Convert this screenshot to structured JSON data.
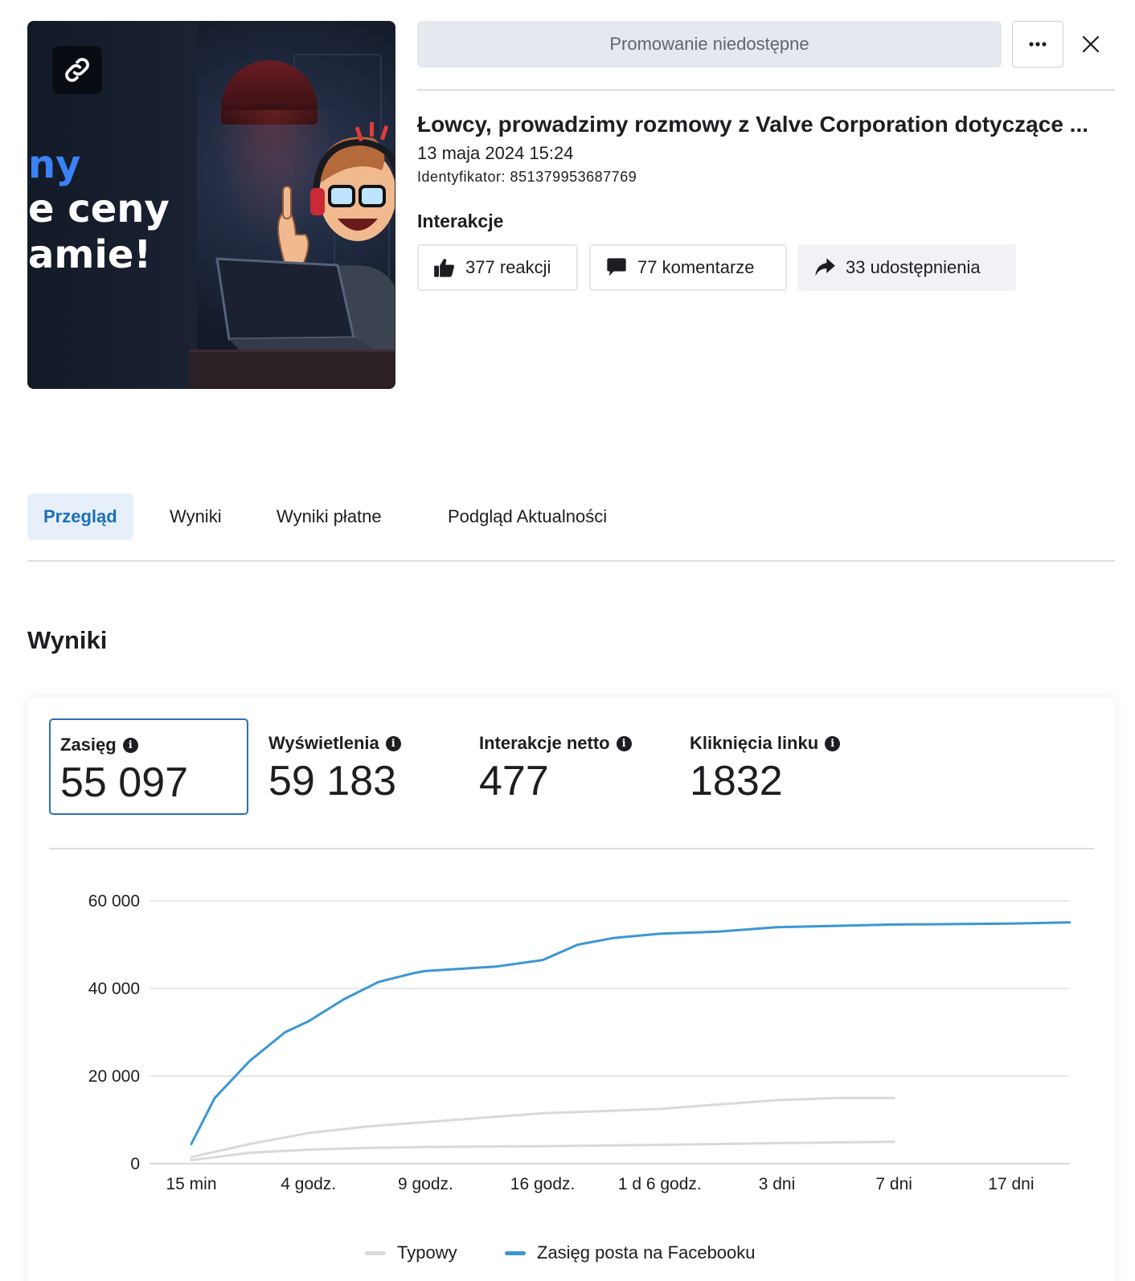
{
  "thumbnail": {
    "text_lines": [
      "ny",
      "e ceny",
      "amie!"
    ],
    "link_icon": "link-icon"
  },
  "header": {
    "promo_button": "Promowanie niedostępne",
    "more_icon": "more-dots-icon",
    "close_icon": "close-icon"
  },
  "post": {
    "title": "Łowcy, prowadzimy rozmowy z Valve Corporation dotyczące ...",
    "date": "13 maja 2024 15:24",
    "id": "Identyfikator: 851379953687769"
  },
  "interactions": {
    "heading": "Interakcje",
    "reactions": "377 reakcji",
    "comments": "77 komentarze",
    "shares": "33 udostępnienia"
  },
  "tabs": [
    "Przegląd",
    "Wyniki",
    "Wyniki płatne",
    "Podgląd Aktualności"
  ],
  "results": {
    "heading": "Wyniki",
    "metrics": [
      {
        "label": "Zasięg",
        "value": "55 097"
      },
      {
        "label": "Wyświetlenia",
        "value": "59 183"
      },
      {
        "label": "Interakcje netto",
        "value": "477"
      },
      {
        "label": "Kliknięcia linku",
        "value": "1832"
      }
    ]
  },
  "colors": {
    "accent_blue": "#3b97d3",
    "typical_gray": "#d8d9dc",
    "selected_border": "#2d6fb5"
  },
  "chart_data": {
    "type": "line",
    "categories": [
      "15 min",
      "4 godz.",
      "9 godz.",
      "16 godz.",
      "1 d 6 godz.",
      "3 dni",
      "7 dni",
      "17 dni"
    ],
    "yticks": [
      "0",
      "20 000",
      "40 000",
      "60 000"
    ],
    "ylim": [
      0,
      60000
    ],
    "grid": true,
    "legend_position": "bottom",
    "series": [
      {
        "name": "Zasięg posta na Facebooku",
        "color": "#3b97d3",
        "x": [
          0,
          0.2,
          0.5,
          0.8,
          1.0,
          1.3,
          1.6,
          1.9,
          2.0,
          2.3,
          2.6,
          3.0,
          3.3,
          3.6,
          4.0,
          4.5,
          5.0,
          5.5,
          6.0,
          6.5,
          7.0,
          7.5
        ],
        "values": [
          4500,
          15000,
          23500,
          30000,
          32500,
          37500,
          41500,
          43500,
          44000,
          44500,
          45000,
          46500,
          50000,
          51500,
          52500,
          53000,
          54000,
          54300,
          54600,
          54700,
          54800,
          55100
        ]
      },
      {
        "name": "Typowy (górny)",
        "color": "#d8d9dc",
        "x": [
          0,
          0.5,
          1.0,
          1.5,
          2.0,
          2.5,
          3.0,
          3.5,
          4.0,
          4.5,
          5.0,
          5.5,
          6.0
        ],
        "values": [
          1500,
          4500,
          7000,
          8500,
          9500,
          10500,
          11500,
          12000,
          12500,
          13500,
          14500,
          15000,
          15000
        ]
      },
      {
        "name": "Typowy (dolny)",
        "color": "#d8d9dc",
        "x": [
          0,
          0.5,
          1.0,
          1.5,
          2.0,
          3.0,
          4.0,
          5.0,
          6.0
        ],
        "values": [
          800,
          2500,
          3200,
          3600,
          3800,
          4000,
          4300,
          4700,
          5000
        ]
      }
    ],
    "legend": [
      {
        "label": "Typowy",
        "color": "#d8d9dc"
      },
      {
        "label": "Zasięg posta na Facebooku",
        "color": "#3b97d3"
      }
    ]
  }
}
